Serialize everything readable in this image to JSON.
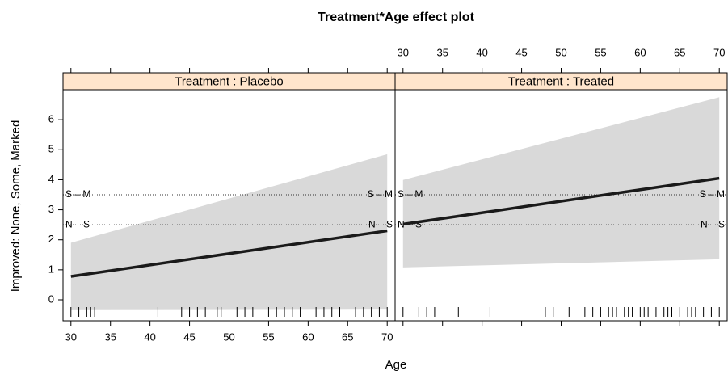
{
  "chart_data": {
    "type": "effect",
    "title": "Treatment*Age effect plot",
    "x_label": "Age",
    "y_label": "Improved: None, Some, Marked",
    "xlim": [
      29,
      71
    ],
    "ylim": [
      -0.7,
      7
    ],
    "xticks": [
      30,
      35,
      40,
      45,
      50,
      55,
      60,
      65,
      70
    ],
    "yticks": [
      0,
      1,
      2,
      3,
      4,
      5,
      6
    ],
    "x": [
      30,
      70
    ],
    "band_color": "#d9d9d9",
    "line_color": "#1a1a1a",
    "strip_color": "#ffe5cc",
    "thresholds": [
      {
        "label": "N – S",
        "value": 2.5
      },
      {
        "label": "S – M",
        "value": 3.5
      }
    ],
    "panels": [
      {
        "strip": "Treatment : Placebo",
        "fit": [
          0.78,
          2.3
        ],
        "lower": [
          -0.32,
          -0.3
        ],
        "upper": [
          1.9,
          4.85
        ],
        "rug": [
          30,
          31,
          32,
          32.5,
          33,
          41,
          44,
          45,
          46,
          47,
          48.5,
          49,
          50,
          51,
          52,
          53,
          55,
          56,
          57,
          58,
          59,
          61,
          62,
          63,
          64,
          66,
          67,
          68,
          69,
          70
        ]
      },
      {
        "strip": "Treatment : Treated",
        "fit": [
          2.52,
          4.05
        ],
        "lower": [
          1.08,
          1.35
        ],
        "upper": [
          3.99,
          6.75
        ],
        "rug": [
          30,
          32,
          33,
          34,
          37,
          41,
          48,
          49,
          51,
          53,
          54,
          55,
          56,
          56.5,
          57,
          58,
          58.5,
          59,
          60,
          60.5,
          61,
          62,
          63,
          63.5,
          64,
          65,
          66,
          66.5,
          67,
          68,
          69,
          70
        ]
      }
    ]
  }
}
